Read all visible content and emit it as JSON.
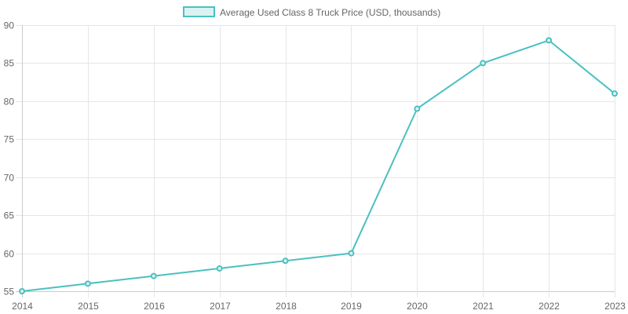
{
  "chart_data": {
    "type": "line",
    "title": "",
    "legend": {
      "position": "top",
      "entries": [
        "Average Used Class 8 Truck Price (USD, thousands)"
      ]
    },
    "categories": [
      "2014",
      "2015",
      "2016",
      "2017",
      "2018",
      "2019",
      "2020",
      "2021",
      "2022",
      "2023"
    ],
    "series": [
      {
        "name": "Average Used Class 8 Truck Price (USD, thousands)",
        "values": [
          55,
          56,
          57,
          58,
          59,
          60,
          79,
          85,
          88,
          81
        ],
        "color": "#4bc0c0",
        "fill": "#dbf2f2"
      }
    ],
    "xlabel": "",
    "ylabel": "",
    "ylim": [
      55,
      90
    ],
    "yticks": [
      55,
      60,
      65,
      70,
      75,
      80,
      85,
      90
    ],
    "grid": true
  }
}
